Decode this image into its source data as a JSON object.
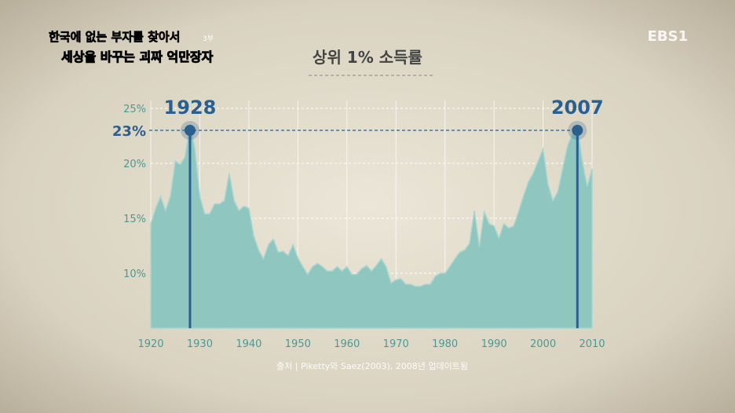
{
  "header": {
    "program_line1": "한국에 없는 부자를 찾아서",
    "episode": "3부",
    "program_line2": "세상을 바꾸는 괴짜 억만장자",
    "channel": "EBS1"
  },
  "chart_data": {
    "type": "area",
    "title": "상위 1% 소득률",
    "x": [
      1920,
      1921,
      1922,
      1923,
      1924,
      1925,
      1926,
      1927,
      1928,
      1929,
      1930,
      1931,
      1932,
      1933,
      1934,
      1935,
      1936,
      1937,
      1938,
      1939,
      1940,
      1941,
      1942,
      1943,
      1944,
      1945,
      1946,
      1947,
      1948,
      1949,
      1950,
      1951,
      1952,
      1953,
      1954,
      1955,
      1956,
      1957,
      1958,
      1959,
      1960,
      1961,
      1962,
      1963,
      1964,
      1965,
      1966,
      1967,
      1968,
      1969,
      1970,
      1971,
      1972,
      1973,
      1974,
      1975,
      1976,
      1977,
      1978,
      1979,
      1980,
      1981,
      1982,
      1983,
      1984,
      1985,
      1986,
      1987,
      1988,
      1989,
      1990,
      1991,
      1992,
      1993,
      1994,
      1995,
      1996,
      1997,
      1998,
      1999,
      2000,
      2001,
      2002,
      2003,
      2004,
      2005,
      2006,
      2007,
      2008,
      2009,
      2010
    ],
    "values": [
      14.5,
      15.9,
      17.0,
      15.7,
      17.0,
      20.2,
      19.9,
      20.6,
      23.6,
      21.3,
      17.0,
      15.4,
      15.4,
      16.3,
      16.3,
      16.6,
      19.1,
      16.6,
      15.7,
      16.1,
      15.9,
      13.4,
      12.1,
      11.3,
      12.6,
      13.1,
      11.9,
      12.0,
      11.6,
      12.6,
      11.4,
      10.6,
      9.9,
      10.6,
      10.9,
      10.6,
      10.2,
      10.2,
      10.6,
      10.2,
      10.6,
      9.9,
      9.9,
      10.4,
      10.7,
      10.2,
      10.7,
      11.3,
      10.6,
      9.1,
      9.4,
      9.5,
      9.0,
      9.0,
      8.8,
      8.8,
      9.0,
      9.0,
      9.7,
      10.0,
      10.0,
      10.6,
      11.3,
      11.9,
      12.1,
      12.7,
      15.7,
      12.4,
      15.6,
      14.5,
      14.3,
      13.2,
      14.5,
      14.1,
      14.3,
      15.6,
      17.0,
      18.3,
      19.1,
      20.2,
      21.3,
      18.1,
      16.6,
      17.4,
      19.5,
      21.6,
      22.7,
      23.5,
      20.2,
      17.9,
      19.5
    ],
    "color": "#8fc6bf",
    "xlim": [
      1920,
      2010
    ],
    "xticks": [
      1920,
      1930,
      1940,
      1950,
      1960,
      1970,
      1980,
      1990,
      2000,
      2010
    ],
    "ylim": [
      5,
      25
    ],
    "yticks": [
      {
        "value": 10,
        "label": "10%"
      },
      {
        "value": 15,
        "label": "15%"
      },
      {
        "value": 20,
        "label": "20%"
      },
      {
        "value": 25,
        "label": "25%"
      }
    ],
    "grid": true,
    "highlight_years": [
      1928,
      2007
    ],
    "highlight_color": "#2b5f8e",
    "reference": {
      "value": 23,
      "label": "23%"
    },
    "source": "출처 | Piketty와 Saez(2003), 2008년 업데이트됨"
  }
}
